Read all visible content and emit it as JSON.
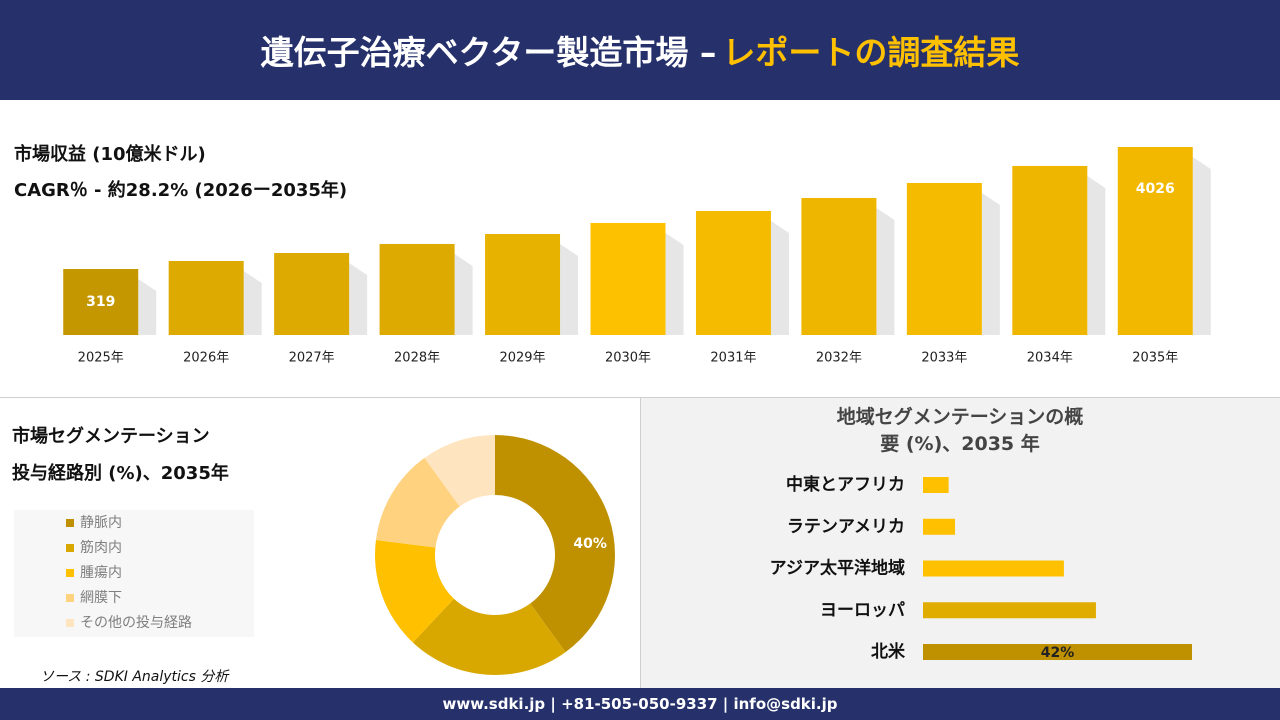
{
  "header": {
    "title_main": "遺伝子治療ベクター製造市場 –",
    "title_highlight": "レポートの調査結果"
  },
  "chart_data": [
    {
      "type": "bar",
      "title": "市場収益 (10億米ドル)",
      "subtitle": "CAGR％ - 約28.2% (2026ー2035年)",
      "categories": [
        "2025年",
        "2026年",
        "2027年",
        "2028年",
        "2029年",
        "2030年",
        "2031年",
        "2032年",
        "2033年",
        "2034年",
        "2035年"
      ],
      "values": [
        319,
        563,
        806,
        1080,
        1383,
        1718,
        2082,
        2477,
        2933,
        3450,
        4026
      ],
      "value_labels": [
        "319",
        null,
        null,
        null,
        null,
        null,
        null,
        null,
        null,
        null,
        "4026"
      ],
      "colors": [
        "#c49700",
        "#dcaa00",
        "#dcaa00",
        "#dcaa00",
        "#e8b300",
        "#fdc100",
        "#f5bb00",
        "#efb600",
        "#f5bb00",
        "#efb600",
        "#f2b800"
      ],
      "ylim": [
        -1686,
        4026
      ]
    },
    {
      "type": "donut",
      "title": "市場セグメンテーション",
      "subtitle": "投与経路別 (%)、2035年",
      "series": [
        {
          "name": "静脈内",
          "color": "#bf9000",
          "values": [
            40
          ]
        },
        {
          "name": "筋肉内",
          "color": "#d9a800",
          "values": [
            22
          ]
        },
        {
          "name": "腫瘍内",
          "color": "#ffc000",
          "values": [
            15
          ]
        },
        {
          "name": "網膜下",
          "color": "#ffd280",
          "values": [
            13
          ]
        },
        {
          "name": "その他の投与経路",
          "color": "#ffe5bf",
          "values": [
            10
          ]
        }
      ],
      "value_labels": [
        "40%",
        null,
        null,
        null,
        null
      ]
    },
    {
      "type": "hbar",
      "title": "地域セグメンテーションの概要 (%)、2035 年",
      "categories": [
        "中東とアフリカ",
        "ラテンアメリカ",
        "アジア太平洋地域",
        "ヨーロッパ",
        "北米"
      ],
      "values": [
        4,
        5,
        22,
        27,
        42
      ],
      "value_labels": [
        null,
        null,
        null,
        null,
        "42%"
      ],
      "colors": [
        "#ffc000",
        "#ffc000",
        "#ffc000",
        "#e0ac00",
        "#bf9000"
      ],
      "xlim": [
        0,
        42
      ]
    }
  ],
  "source": "ソース : SDKI Analytics 分析",
  "footer": "www.sdki.jp | +81-505-050-9337 | info@sdki.jp"
}
